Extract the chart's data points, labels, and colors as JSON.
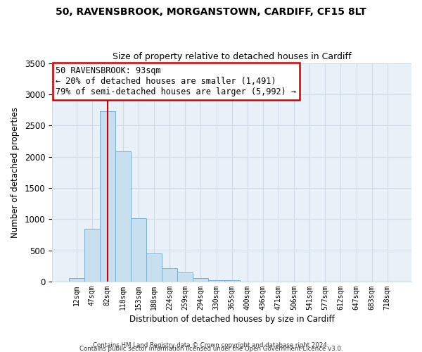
{
  "title1": "50, RAVENSBROOK, MORGANSTOWN, CARDIFF, CF15 8LT",
  "title2": "Size of property relative to detached houses in Cardiff",
  "xlabel": "Distribution of detached houses by size in Cardiff",
  "ylabel": "Number of detached properties",
  "bar_labels": [
    "12sqm",
    "47sqm",
    "82sqm",
    "118sqm",
    "153sqm",
    "188sqm",
    "224sqm",
    "259sqm",
    "294sqm",
    "330sqm",
    "365sqm",
    "400sqm",
    "436sqm",
    "471sqm",
    "506sqm",
    "541sqm",
    "577sqm",
    "612sqm",
    "647sqm",
    "683sqm",
    "718sqm"
  ],
  "bar_values": [
    55,
    850,
    2730,
    2080,
    1010,
    455,
    215,
    150,
    55,
    25,
    20,
    5,
    0,
    0,
    0,
    0,
    0,
    0,
    0,
    0,
    0
  ],
  "bar_color": "#c8dff0",
  "bar_edge_color": "#7aafd4",
  "vline_x_index": 2,
  "vline_color": "#cc0000",
  "ylim": [
    0,
    3500
  ],
  "yticks": [
    0,
    500,
    1000,
    1500,
    2000,
    2500,
    3000,
    3500
  ],
  "annotation_text": "50 RAVENSBROOK: 93sqm\n← 20% of detached houses are smaller (1,491)\n79% of semi-detached houses are larger (5,992) →",
  "annotation_box_color": "#ffffff",
  "annotation_box_edge": "#cc0000",
  "grid_color": "#d0dce8",
  "bg_color": "#e8f0f8",
  "footer1": "Contains HM Land Registry data © Crown copyright and database right 2024.",
  "footer2": "Contains public sector information licensed under the Open Government Licence v3.0."
}
